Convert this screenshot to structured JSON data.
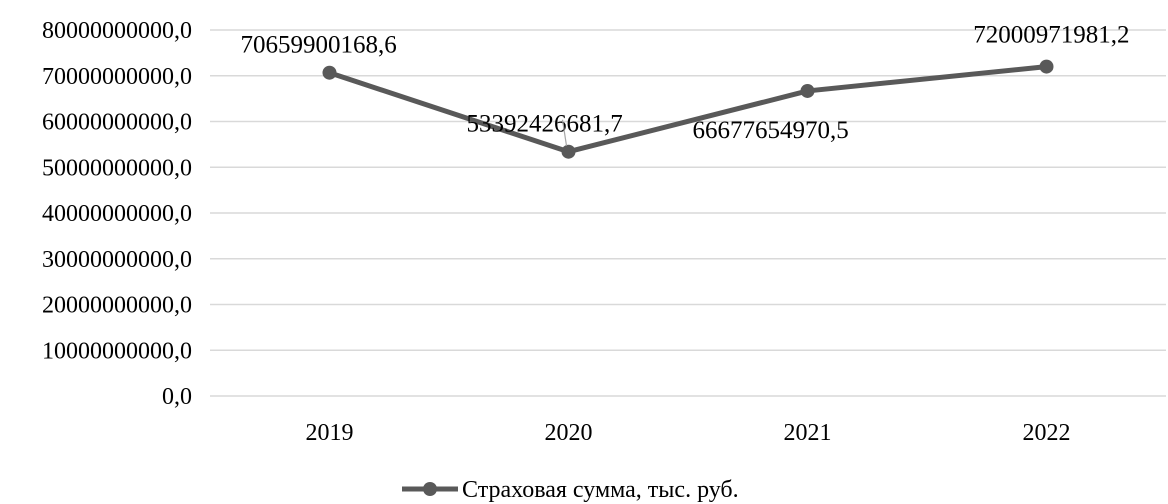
{
  "chart_data": {
    "type": "line",
    "categories": [
      "2019",
      "2020",
      "2021",
      "2022"
    ],
    "series": [
      {
        "name": "Страховая сумма, тыс. руб.",
        "values": [
          70659900168.6,
          53392426681.7,
          66677654970.5,
          72000971981.2
        ],
        "data_labels": [
          "70659900168,6",
          "53392426681,7",
          "66677654970,5",
          "72000971981,2"
        ]
      }
    ],
    "ylim": [
      0,
      80000000000
    ],
    "y_ticks": [
      0,
      10000000000,
      20000000000,
      30000000000,
      40000000000,
      50000000000,
      60000000000,
      70000000000,
      80000000000
    ],
    "y_tick_labels": [
      "0,0",
      "10000000000,0",
      "20000000000,0",
      "30000000000,0",
      "40000000000,0",
      "50000000000,0",
      "60000000000,0",
      "70000000000,0",
      "80000000000,0"
    ],
    "grid": true,
    "legend_position": "bottom",
    "colors": {
      "series": "#595959",
      "grid": "#d9d9d9"
    }
  }
}
